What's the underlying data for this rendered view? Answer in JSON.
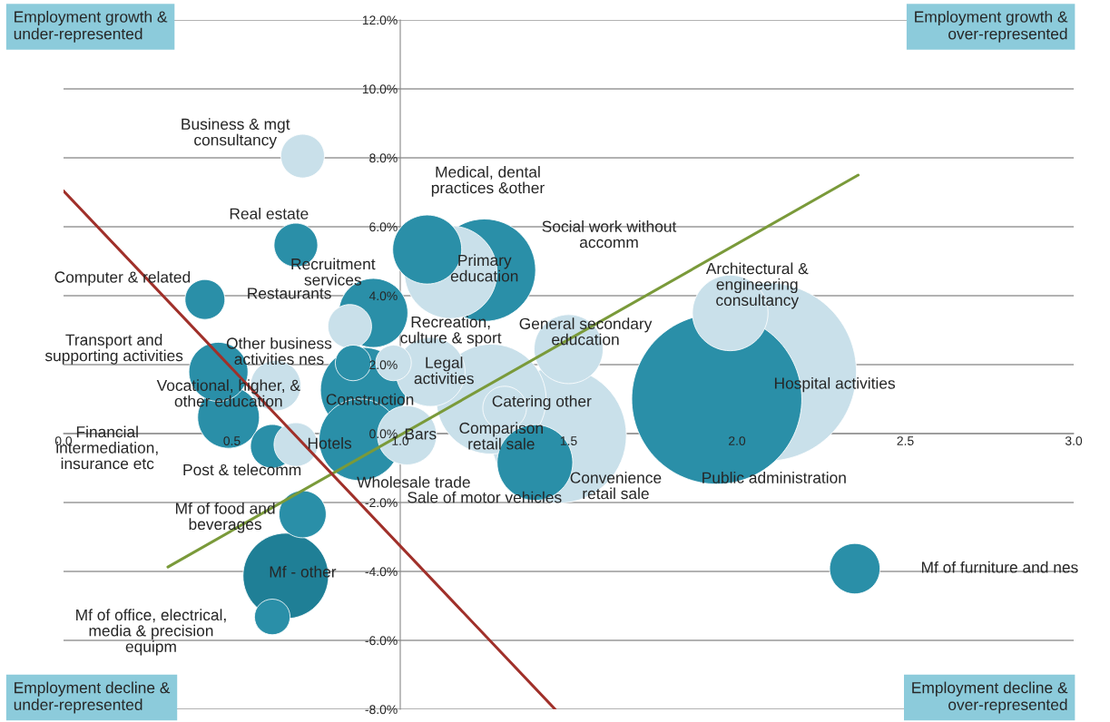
{
  "chart_data": {
    "type": "bubble",
    "xlim": [
      0,
      3
    ],
    "ylim": [
      -8,
      12
    ],
    "xticks": [
      {
        "value": 0,
        "label": "0.0"
      },
      {
        "value": 0.5,
        "label": "0.5"
      },
      {
        "value": 1,
        "label": "1.0"
      },
      {
        "value": 1.5,
        "label": "1.5"
      },
      {
        "value": 2,
        "label": "2.0"
      },
      {
        "value": 2.5,
        "label": "2.5"
      },
      {
        "value": 3,
        "label": "3.0"
      }
    ],
    "yticks": [
      {
        "value": -8,
        "label": "-8.0%"
      },
      {
        "value": -6,
        "label": "-6.0%"
      },
      {
        "value": -4,
        "label": "-4.0%"
      },
      {
        "value": -2,
        "label": "-2.0%"
      },
      {
        "value": 0,
        "label": "0.0%"
      },
      {
        "value": 2,
        "label": "2.0%"
      },
      {
        "value": 4,
        "label": "4.0%"
      },
      {
        "value": 6,
        "label": "6.0%"
      },
      {
        "value": 8,
        "label": "8.0%"
      },
      {
        "value": 10,
        "label": "10.0%"
      },
      {
        "value": 12,
        "label": "12.0%"
      }
    ],
    "grid": "y",
    "legend": false,
    "series": [
      {
        "name": "Business & mgt\nconsultancy",
        "color": "#c9e0ea",
        "x": [
          0.71
        ],
        "values": [
          8.05
        ],
        "sizes": [
          0.06
        ]
      },
      {
        "name": "Real estate",
        "color": "#2a8fa8",
        "x": [
          0.69
        ],
        "values": [
          5.47
        ],
        "sizes": [
          0.06
        ]
      },
      {
        "name": "Computer & related",
        "color": "#2a8fa8",
        "x": [
          0.42
        ],
        "values": [
          3.89
        ],
        "sizes": [
          0.05
        ]
      },
      {
        "name": "Transport and\nsupporting activities",
        "color": "#2a8fa8",
        "x": [
          0.46
        ],
        "values": [
          1.79
        ],
        "sizes": [
          0.11
        ]
      },
      {
        "name": "Vocational, higher, &\nother education",
        "color": "#c9e0ea",
        "x": [
          0.63
        ],
        "values": [
          1.39
        ],
        "sizes": [
          0.08
        ]
      },
      {
        "name": "Financial\nintermediation,\ninsurance etc",
        "color": "#2a8fa8",
        "x": [
          0.49
        ],
        "values": [
          0.47
        ],
        "sizes": [
          0.12
        ]
      },
      {
        "name": "Post & telecomm",
        "color": "#2a8fa8",
        "x": [
          0.62
        ],
        "values": [
          -0.37
        ],
        "sizes": [
          0.06
        ]
      },
      {
        "name": "Hotels",
        "color": "#c9e0ea",
        "x": [
          0.69
        ],
        "values": [
          -0.32
        ],
        "sizes": [
          0.06
        ]
      },
      {
        "name": "Mf of food and\nbeverages",
        "color": "#2a8fa8",
        "x": [
          0.71
        ],
        "values": [
          -2.34
        ],
        "sizes": [
          0.07
        ]
      },
      {
        "name": "Mf - other",
        "color": "#1f7f96",
        "x": [
          0.66
        ],
        "values": [
          -4.13
        ],
        "sizes": [
          0.23
        ]
      },
      {
        "name": "Mf of office, electrical,\nmedia & precision\nequipm",
        "color": "#2a8fa8",
        "x": [
          0.62
        ],
        "values": [
          -5.32
        ],
        "sizes": [
          0.04
        ]
      },
      {
        "name": "Recruitment\nservices",
        "color": "#2a8fa8",
        "x": [
          0.92
        ],
        "values": [
          3.5
        ],
        "sizes": [
          0.15
        ]
      },
      {
        "name": "Restaurants",
        "color": "#c9e0ea",
        "x": [
          0.85
        ],
        "values": [
          3.11
        ],
        "sizes": [
          0.06
        ]
      },
      {
        "name": "Other business\nactivities nes",
        "color": "#2a8fa8",
        "x": [
          0.86
        ],
        "values": [
          2.05
        ],
        "sizes": [
          0.04
        ]
      },
      {
        "name": "Construction",
        "color": "#2a8fa8",
        "x": [
          0.89
        ],
        "values": [
          1.26
        ],
        "sizes": [
          0.23
        ]
      },
      {
        "name": "Recreation,\nculture & sport",
        "color": "#c9e0ea",
        "x": [
          0.98
        ],
        "values": [
          2.05
        ],
        "sizes": [
          0.04
        ]
      },
      {
        "name": "Legal\nactivities",
        "color": "#c9e0ea",
        "x": [
          1.09
        ],
        "values": [
          1.79
        ],
        "sizes": [
          0.15
        ]
      },
      {
        "name": "Bars",
        "color": "#c9e0ea",
        "x": [
          1.02
        ],
        "values": [
          -0.05
        ],
        "sizes": [
          0.11
        ]
      },
      {
        "name": "Wholesale trade",
        "color": "#2a8fa8",
        "x": [
          0.88
        ],
        "values": [
          -0.18
        ],
        "sizes": [
          0.21
        ]
      },
      {
        "name": "Medical, dental\npractices &other",
        "color": "#2a8fa8",
        "x": [
          1.08
        ],
        "values": [
          5.34
        ],
        "sizes": [
          0.15
        ]
      },
      {
        "name": "Social work without\naccomm",
        "color": "#2a8fa8",
        "x": [
          1.25
        ],
        "values": [
          4.74
        ],
        "sizes": [
          0.33
        ]
      },
      {
        "name": "Primary\neducation",
        "color": "#c9e0ea",
        "x": [
          1.15
        ],
        "values": [
          4.68
        ],
        "sizes": [
          0.27
        ]
      },
      {
        "name": "General secondary\neducation",
        "color": "#c9e0ea",
        "x": [
          1.5
        ],
        "values": [
          2.45
        ],
        "sizes": [
          0.15
        ]
      },
      {
        "name": "Sale of motor vehicles",
        "color": "#2a8fa8",
        "x": [
          1.4
        ],
        "values": [
          -0.84
        ],
        "sizes": [
          0.18
        ]
      },
      {
        "name": "Catering other",
        "color": "#c9e0ea",
        "x": [
          1.27
        ],
        "values": [
          1.0
        ],
        "sizes": [
          0.38
        ]
      },
      {
        "name": "Comparison\nretail sale",
        "color": "#c9e0ea",
        "x": [
          1.31
        ],
        "values": [
          0.74
        ],
        "sizes": [
          0.06
        ]
      },
      {
        "name": "Convenience\nretail sale",
        "color": "#c9e0ea",
        "x": [
          1.47
        ],
        "values": [
          -0.05
        ],
        "sizes": [
          0.58
        ]
      },
      {
        "name": "Architectural &\nengineering\nconsultancy",
        "color": "#c9e0ea",
        "x": [
          1.98
        ],
        "values": [
          3.5
        ],
        "sizes": [
          0.18
        ]
      },
      {
        "name": "Public administration",
        "color": "#2a8fa8",
        "x": [
          1.94
        ],
        "values": [
          1.0
        ],
        "sizes": [
          0.91
        ]
      },
      {
        "name": "Hospital activities",
        "color": "#c9e0ea",
        "x": [
          2.09
        ],
        "values": [
          1.79
        ],
        "sizes": [
          1.0
        ]
      },
      {
        "name": "Mf of furniture and nes",
        "color": "#2a8fa8",
        "x": [
          2.35
        ],
        "values": [
          -3.92
        ],
        "sizes": [
          0.08
        ]
      },
      {
        "type": "line",
        "color": "#7a9a3a",
        "x": [
          0.31,
          2.36
        ],
        "values": [
          -3.87,
          7.5
        ]
      },
      {
        "type": "line",
        "color": "#a0302a",
        "x": [
          0,
          1.46
        ],
        "values": [
          7.04,
          -8.0
        ]
      }
    ],
    "annotations": [
      "Employment growth &\nunder-represented",
      "Employment growth &\nover-represented",
      "Employment decline &\nunder-represented",
      "Employment decline &\nover-represented"
    ]
  }
}
